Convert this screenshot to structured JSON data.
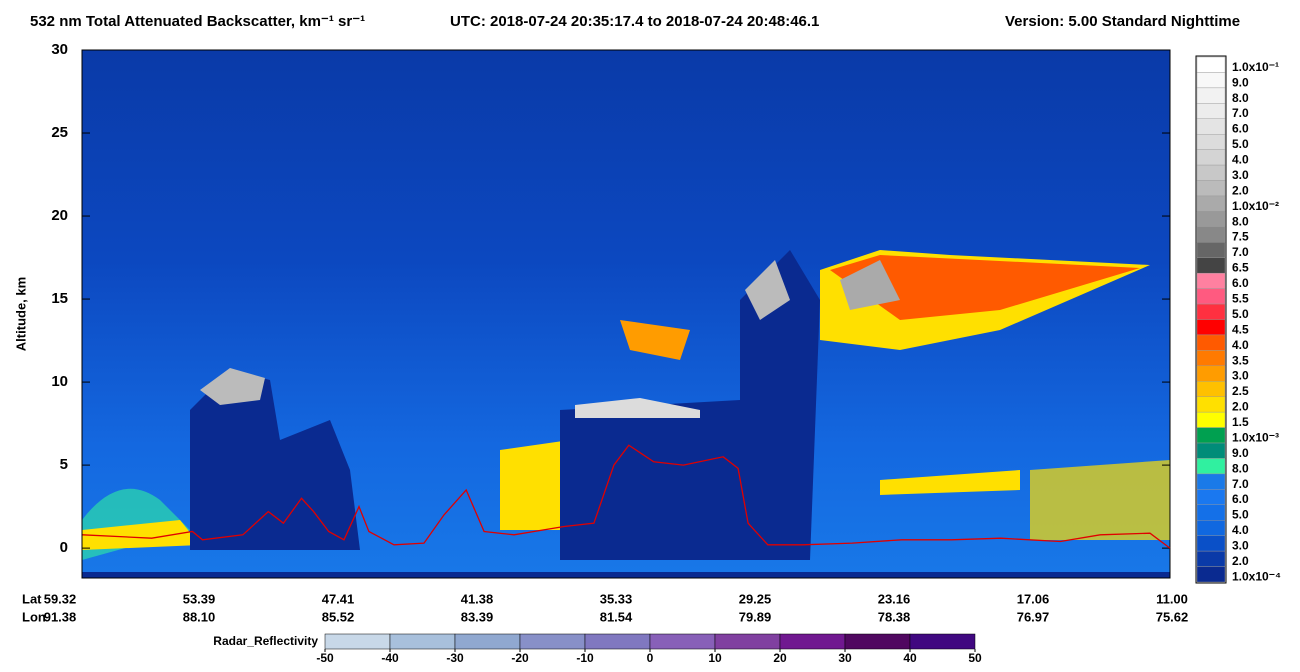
{
  "chart_data": {
    "type": "curtain",
    "title": "532 nm Total Attenuated Backscatter, km⁻¹ sr⁻¹",
    "subtitle": "UTC:  2018-07-24 20:35:17.4  to  2018-07-24 20:48:46.1",
    "version": "Version: 5.00  Standard  Nighttime",
    "y_label": "Altitude, km",
    "ylim": [
      -1.8,
      30
    ],
    "yticks": [
      0,
      5,
      10,
      15,
      20,
      25,
      30
    ],
    "x_row_labels": [
      "Lat",
      "Lon"
    ],
    "xticks": [
      59.32,
      53.39,
      47.41,
      41.38,
      35.33,
      29.25,
      23.16,
      17.06,
      {
        "value": 11,
        "label": "11.00"
      }
    ],
    "lon_labels": [
      "91.38",
      "88.10",
      "85.52",
      "83.39",
      "81.54",
      "79.89",
      "78.38",
      "76.97",
      "75.62"
    ],
    "x": [
      58.36,
      55.41,
      53.67,
      53.24,
      51.5,
      50.41,
      49.76,
      48.98,
      48.46,
      47.81,
      47.15,
      46.5,
      46.07,
      44.98,
      43.68,
      42.81,
      41.85,
      41.07,
      39.77,
      37.59,
      36.29,
      35.42,
      34.77,
      33.68,
      32.38,
      30.64,
      29.99,
      29.55,
      28.69,
      27.16,
      24.99,
      22.82,
      20.65,
      18.47,
      15.87,
      14.13,
      11.96,
      11.09
    ],
    "series": [
      {
        "color": "#e00000",
        "values": [
          0.8,
          0.6,
          1.0,
          0.5,
          0.8,
          2.2,
          1.5,
          3.0,
          2.2,
          1.0,
          0.5,
          2.5,
          1.0,
          0.2,
          0.3,
          2.0,
          3.5,
          1.0,
          0.8,
          1.3,
          1.5,
          5.0,
          6.2,
          5.2,
          5.0,
          5.5,
          4.8,
          1.5,
          0.2,
          0.2,
          0.3,
          0.5,
          0.5,
          0.6,
          0.4,
          0.8,
          0.9,
          0.0
        ]
      }
    ],
    "colorbar": {
      "labels": [
        "1.0x10⁻¹",
        "9.0",
        "8.0",
        "7.0",
        "6.0",
        "5.0",
        "4.0",
        "3.0",
        "2.0",
        "1.0x10⁻²",
        "8.0",
        "7.5",
        "7.0",
        "6.5",
        "6.0",
        "5.5",
        "5.0",
        "4.5",
        "4.0",
        "3.5",
        "3.0",
        "2.5",
        "2.0",
        "1.5",
        "1.0x10⁻³",
        "9.0",
        "8.0",
        "7.0",
        "6.0",
        "5.0",
        "4.0",
        "3.0",
        "2.0",
        "1.0x10⁻⁴"
      ],
      "colors": [
        "#ffffff",
        "#f8f8f8",
        "#f2f2f2",
        "#ececec",
        "#e4e4e4",
        "#dcdcdc",
        "#d4d4d4",
        "#c8c8c8",
        "#bbbbbb",
        "#aaaaaa",
        "#999999",
        "#888888",
        "#666666",
        "#444444",
        "#ff80a0",
        "#ff5a80",
        "#ff3040",
        "#ff0000",
        "#ff5a00",
        "#ff7a00",
        "#ff9c00",
        "#ffc000",
        "#ffe000",
        "#ffff00",
        "#00a050",
        "#008c78",
        "#30f0a0",
        "#1a7ae8",
        "#1a78f0",
        "#1470e8",
        "#1068e0",
        "#0a50c8",
        "#0a3aa8",
        "#0a2a90"
      ]
    },
    "radar": {
      "label": "Radar_Reflectivity",
      "ticks": [
        -50,
        -40,
        -30,
        -20,
        -10,
        0,
        10,
        20,
        30,
        40,
        50
      ],
      "colors": [
        "#c8d8e8",
        "#a8c0dc",
        "#90a8d0",
        "#8890c8",
        "#8078c0",
        "#8860b8",
        "#8040a0",
        "#701890",
        "#500860",
        "#400880"
      ]
    }
  }
}
